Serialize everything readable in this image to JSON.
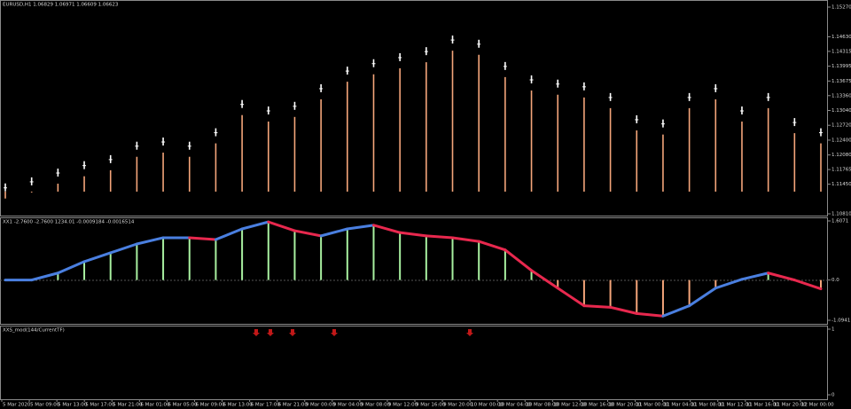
{
  "main": {
    "header": "EURUSD,H1  1.06829 1.06971 1.06609 1.06623",
    "ylim": [
      1.1081,
      1.1527
    ],
    "yticks": [
      {
        "value": 1.1527,
        "label": "1.15270"
      },
      {
        "value": 1.1463,
        "label": "1.14630"
      },
      {
        "value": 1.14315,
        "label": "1.14315"
      },
      {
        "value": 1.13995,
        "label": "1.13995"
      },
      {
        "value": 1.13675,
        "label": "1.13675"
      },
      {
        "value": 1.1336,
        "label": "1.13360"
      },
      {
        "value": 1.1304,
        "label": "1.13040"
      },
      {
        "value": 1.1272,
        "label": "1.12720"
      },
      {
        "value": 1.124,
        "label": "1.12400"
      },
      {
        "value": 1.1208,
        "label": "1.12080"
      },
      {
        "value": 1.11765,
        "label": "1.11765"
      },
      {
        "value": 1.1145,
        "label": "1.11450"
      },
      {
        "value": 1.1081,
        "label": "1.10810"
      }
    ],
    "closes": [
      1.1137,
      1.115,
      1.1169,
      1.1185,
      1.1198,
      1.1227,
      1.1236,
      1.1227,
      1.1256,
      1.1317,
      1.1303,
      1.1313,
      1.1351,
      1.1389,
      1.1405,
      1.1418,
      1.1431,
      1.1456,
      1.1447,
      1.1399,
      1.137,
      1.1361,
      1.1355,
      1.1332,
      1.1284,
      1.1275,
      1.1332,
      1.1351,
      1.1303,
      1.1332,
      1.1278,
      1.1256
    ],
    "candle_color": "#ffffff",
    "histogram_color": "#f4a57a"
  },
  "indicator1": {
    "header": "XX1 -2.7600 -2.7600 1234.01 -0.0009184 -0.0016514",
    "ylim": [
      -1.0941,
      1.6071
    ],
    "yticks": [
      1.6071,
      {
        "value": 0,
        "label": "0.0"
      },
      -1.0941
    ],
    "values": [
      0,
      0,
      0.19,
      0.5,
      0.74,
      0.98,
      1.15,
      1.15,
      1.1,
      1.39,
      1.58,
      1.34,
      1.2,
      1.39,
      1.49,
      1.29,
      1.2,
      1.15,
      1.05,
      0.82,
      0.26,
      -0.22,
      -0.7,
      -0.74,
      -0.91,
      -0.98,
      -0.7,
      -0.22,
      0.02,
      0.19,
      0,
      -0.24
    ],
    "positive_color": "#a8f0a0",
    "negative_color": "#f4a57a",
    "rising_color": "#4a7fe0",
    "falling_color": "#e8284e"
  },
  "indicator2": {
    "header": "XXS_mod(144/CurrentTF)",
    "ylim": [
      0,
      1
    ],
    "yticks": [
      1,
      0
    ]
  },
  "time_axis": [
    "5 Mar 2020",
    "5 Mar 09:00",
    "5 Mar 13:00",
    "5 Mar 17:00",
    "5 Mar 21:00",
    "6 Mar 01:00",
    "6 Mar 05:00",
    "6 Mar 09:00",
    "6 Mar 13:00",
    "6 Mar 17:00",
    "6 Mar 21:00",
    "9 Mar 00:00",
    "9 Mar 04:00",
    "9 Mar 08:00",
    "9 Mar 12:00",
    "9 Mar 16:00",
    "9 Mar 20:00",
    "10 Mar 00:00",
    "10 Mar 04:00",
    "10 Mar 08:00",
    "10 Mar 12:00",
    "10 Mar 16:00",
    "10 Mar 20:00",
    "11 Mar 00:00",
    "11 Mar 04:00",
    "11 Mar 08:00",
    "11 Mar 12:00",
    "11 Mar 16:00",
    "11 Mar 20:00",
    "12 Mar 00:00"
  ]
}
